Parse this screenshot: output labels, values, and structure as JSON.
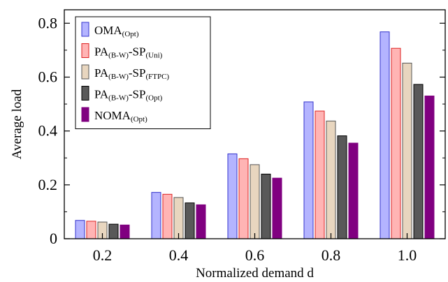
{
  "chart_data": {
    "type": "bar",
    "xlabel": "Normalized demand d",
    "ylabel": "Average load",
    "categories": [
      "0.2",
      "0.4",
      "0.6",
      "0.8",
      "1.0"
    ],
    "ylim": [
      0,
      0.85
    ],
    "yticks": [
      "0",
      "0.2",
      "0.4",
      "0.6",
      "0.8"
    ],
    "ytick_values": [
      0,
      0.2,
      0.4,
      0.6,
      0.8
    ],
    "grid": false,
    "legend_position": "top-left",
    "series": [
      {
        "name": "OMA(Opt)",
        "parts": [
          {
            "t": "OMA",
            "sub": false
          },
          {
            "t": "(Opt)",
            "sub": true
          }
        ],
        "fill": "#b4b4ff",
        "stroke": "#3333cc",
        "values": [
          0.068,
          0.172,
          0.315,
          0.508,
          0.768
        ]
      },
      {
        "name": "PA(B-W)-SP(Uni)",
        "parts": [
          {
            "t": "PA",
            "sub": false
          },
          {
            "t": "(B-W)",
            "sub": true
          },
          {
            "t": "-SP",
            "sub": false
          },
          {
            "t": "(Uni)",
            "sub": true
          }
        ],
        "fill": "#ffb4b4",
        "stroke": "#dd2222",
        "values": [
          0.065,
          0.165,
          0.297,
          0.474,
          0.707
        ]
      },
      {
        "name": "PA(B-W)-SP(FTPC)",
        "parts": [
          {
            "t": "PA",
            "sub": false
          },
          {
            "t": "(B-W)",
            "sub": true
          },
          {
            "t": "-SP",
            "sub": false
          },
          {
            "t": "(FTPC)",
            "sub": true
          }
        ],
        "fill": "#e8d6bf",
        "stroke": "#555555",
        "values": [
          0.062,
          0.153,
          0.275,
          0.437,
          0.652
        ]
      },
      {
        "name": "PA(B-W)-SP(Opt)",
        "parts": [
          {
            "t": "PA",
            "sub": false
          },
          {
            "t": "(B-W)",
            "sub": true
          },
          {
            "t": "-SP",
            "sub": false
          },
          {
            "t": "(Opt)",
            "sub": true
          }
        ],
        "fill": "#595959",
        "stroke": "#000000",
        "values": [
          0.054,
          0.133,
          0.24,
          0.382,
          0.573
        ]
      },
      {
        "name": "NOMA(Opt)",
        "parts": [
          {
            "t": "NOMA",
            "sub": false
          },
          {
            "t": "(Opt)",
            "sub": true
          }
        ],
        "fill": "#800080",
        "stroke": "#800080",
        "values": [
          0.051,
          0.126,
          0.225,
          0.355,
          0.53
        ]
      }
    ]
  }
}
